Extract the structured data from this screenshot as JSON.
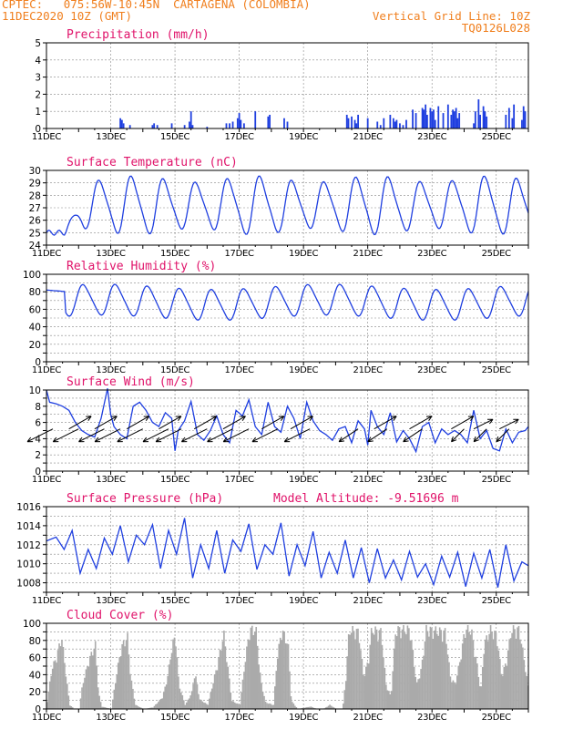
{
  "header": {
    "line1": "CPTEC:   075:56W-10:45N  CARTAGENA (COLOMBIA)",
    "line2": "11DEC2020 10Z (GMT)",
    "right1": "Vertical Grid Line: 10Z",
    "right2": "TQ0126L028"
  },
  "colors": {
    "header": "#f07f1e",
    "title": "#e0136a",
    "line": "#1f3fe0",
    "cloud": "#aaaaaa",
    "wind_arrow": "#000000"
  },
  "x_axis": {
    "labels": [
      "11DEC",
      "13DEC",
      "15DEC",
      "17DEC",
      "19DEC",
      "21DEC",
      "23DEC",
      "25DEC"
    ],
    "label_days": [
      0,
      2,
      4,
      6,
      8,
      10,
      12,
      14
    ],
    "range_days": [
      0,
      15
    ]
  },
  "chart_data": [
    {
      "type": "bar",
      "id": "precip",
      "title": "Precipitation (mm/h)",
      "ylim": [
        0,
        5
      ],
      "yticks": [
        0,
        1,
        2,
        3,
        4,
        5
      ],
      "grid": true,
      "x": [
        2.3,
        2.35,
        2.4,
        2.6,
        3.3,
        3.35,
        3.45,
        3.9,
        4.3,
        4.45,
        4.5,
        4.55,
        5.0,
        5.6,
        5.7,
        5.8,
        5.95,
        6.0,
        6.05,
        6.15,
        6.5,
        6.9,
        6.95,
        7.4,
        7.5,
        9.35,
        9.4,
        9.5,
        9.6,
        9.65,
        9.7,
        10.0,
        10.3,
        10.4,
        10.5,
        10.7,
        10.8,
        10.85,
        10.9,
        11.0,
        11.1,
        11.2,
        11.4,
        11.5,
        11.7,
        11.75,
        11.8,
        11.85,
        11.95,
        12.0,
        12.05,
        12.1,
        12.2,
        12.35,
        12.5,
        12.6,
        12.65,
        12.7,
        12.75,
        12.8,
        12.85,
        13.3,
        13.35,
        13.45,
        13.5,
        13.6,
        13.65,
        13.7,
        14.3,
        14.4,
        14.5,
        14.55,
        14.8,
        14.85,
        14.9
      ],
      "values": [
        0.6,
        0.5,
        0.3,
        0.2,
        0.2,
        0.3,
        0.2,
        0.3,
        0.2,
        0.4,
        1.0,
        0.2,
        0.1,
        0.3,
        0.3,
        0.4,
        0.6,
        0.9,
        0.5,
        0.3,
        1.0,
        0.7,
        0.8,
        0.6,
        0.4,
        0.8,
        0.6,
        0.7,
        0.5,
        0.3,
        0.8,
        0.6,
        0.4,
        0.2,
        0.6,
        0.8,
        0.6,
        0.4,
        0.5,
        0.3,
        0.2,
        0.5,
        1.1,
        0.9,
        1.2,
        1.1,
        1.4,
        0.8,
        1.2,
        1.0,
        1.1,
        0.5,
        1.3,
        0.9,
        1.4,
        0.8,
        1.1,
        1.0,
        1.2,
        0.6,
        0.9,
        0.3,
        1.0,
        1.7,
        0.8,
        1.3,
        1.0,
        0.7,
        0.8,
        1.2,
        0.6,
        1.4,
        0.5,
        1.3,
        1.0
      ]
    },
    {
      "type": "line",
      "id": "temp",
      "title": "Surface Temperature (nC)",
      "ylim": [
        24,
        30
      ],
      "yticks": [
        24,
        25,
        26,
        27,
        28,
        29,
        30
      ],
      "grid": true,
      "mean": 27.2,
      "amp": 2.0,
      "period_days": 1.0,
      "phase_day": 0.42,
      "x": [
        0,
        0.1,
        0.2,
        0.35,
        0.5,
        0.6
      ],
      "values": [
        24.8,
        25.2,
        25.0,
        24.9,
        24.8,
        25.3
      ]
    },
    {
      "type": "line",
      "id": "rh",
      "title": "Relative Humidity (%)",
      "ylim": [
        0,
        100
      ],
      "yticks": [
        0,
        10,
        20,
        30,
        40,
        50,
        60,
        70,
        80,
        90,
        100
      ],
      "ytick_labels": [
        0,
        20,
        40,
        60,
        80,
        100
      ],
      "grid": true,
      "mean": 68,
      "amp": 17,
      "period_days": 1.0,
      "phase_day": 0.92,
      "x": [
        0,
        0.3,
        0.6
      ],
      "values": [
        83,
        82,
        80
      ]
    },
    {
      "type": "line",
      "id": "wind",
      "title": "Surface Wind (m/s)",
      "ylim": [
        0,
        10
      ],
      "yticks": [
        0,
        1,
        2,
        3,
        4,
        5,
        6,
        7,
        8,
        9,
        10
      ],
      "ytick_labels": [
        0,
        2,
        4,
        6,
        8,
        10
      ],
      "grid": true,
      "x": [
        0,
        0.1,
        0.3,
        0.5,
        0.7,
        0.9,
        1.1,
        1.3,
        1.5,
        1.7,
        1.9,
        2.0,
        2.1,
        2.3,
        2.5,
        2.7,
        2.9,
        3.1,
        3.3,
        3.5,
        3.7,
        3.9,
        4.0,
        4.1,
        4.3,
        4.5,
        4.7,
        4.9,
        5.1,
        5.3,
        5.5,
        5.7,
        5.9,
        6.1,
        6.3,
        6.5,
        6.7,
        6.9,
        7.1,
        7.3,
        7.5,
        7.7,
        7.9,
        8.1,
        8.3,
        8.5,
        8.7,
        8.9,
        9.1,
        9.3,
        9.5,
        9.7,
        9.9,
        10.0,
        10.1,
        10.3,
        10.5,
        10.7,
        10.9,
        11.1,
        11.3,
        11.5,
        11.7,
        11.9,
        12.1,
        12.3,
        12.5,
        12.7,
        12.9,
        13.1,
        13.3,
        13.5,
        13.7,
        13.9,
        14.1,
        14.3,
        14.5,
        14.7,
        14.9,
        15.0
      ],
      "values": [
        10,
        8.5,
        8.3,
        8,
        7.5,
        6,
        5,
        4.5,
        4.2,
        6.5,
        10.2,
        7,
        5.5,
        4.5,
        4,
        8,
        8.5,
        7.5,
        6,
        5.5,
        7.2,
        6.5,
        2.5,
        5,
        6.2,
        8.6,
        4.5,
        3.8,
        5,
        6.8,
        4.5,
        3.5,
        7.5,
        6.8,
        8.8,
        5.5,
        4.5,
        8.5,
        5.5,
        4.8,
        8,
        6.5,
        4,
        8.5,
        6.2,
        5,
        4.5,
        3.8,
        5.2,
        5.5,
        3.5,
        6.2,
        5.2,
        3.2,
        7.5,
        5.5,
        4.5,
        7.2,
        3.6,
        5,
        4,
        2.4,
        5.5,
        6,
        3.5,
        5.2,
        4.5,
        5,
        4.5,
        3.5,
        7.5,
        4,
        5,
        2.8,
        2.5,
        5.2,
        3.5,
        4.8,
        5,
        5.5
      ],
      "arrows": [
        {
          "x": 0.2,
          "u": -4,
          "v": -2
        },
        {
          "x": 0.7,
          "u": 3.5,
          "v": 2
        },
        {
          "x": 1.0,
          "u": -4,
          "v": -2
        },
        {
          "x": 1.5,
          "u": 3.5,
          "v": 2
        },
        {
          "x": 1.8,
          "u": -4,
          "v": -2
        },
        {
          "x": 2.3,
          "u": -4,
          "v": -2
        },
        {
          "x": 2.5,
          "u": 3.5,
          "v": 2
        },
        {
          "x": 3.0,
          "u": -4,
          "v": -2
        },
        {
          "x": 3.5,
          "u": 3.5,
          "v": 2
        },
        {
          "x": 3.8,
          "u": -4,
          "v": -2
        },
        {
          "x": 4.2,
          "u": -4,
          "v": -2
        },
        {
          "x": 4.6,
          "u": 3.5,
          "v": 2
        },
        {
          "x": 5.0,
          "u": -4,
          "v": -2
        },
        {
          "x": 5.5,
          "u": 3.5,
          "v": 2
        },
        {
          "x": 5.8,
          "u": -4,
          "v": -2
        },
        {
          "x": 6.3,
          "u": -4,
          "v": -2
        },
        {
          "x": 6.7,
          "u": 3.5,
          "v": 2
        },
        {
          "x": 7.2,
          "u": -4,
          "v": -2
        },
        {
          "x": 7.6,
          "u": 3.5,
          "v": 2
        },
        {
          "x": 8.2,
          "u": -4,
          "v": -2
        },
        {
          "x": 9.7,
          "u": -3,
          "v": -2
        },
        {
          "x": 10.2,
          "u": 3.5,
          "v": 2
        },
        {
          "x": 10.6,
          "u": -3,
          "v": -2
        },
        {
          "x": 11.3,
          "u": 3.5,
          "v": 2
        },
        {
          "x": 11.7,
          "u": -3,
          "v": -2
        },
        {
          "x": 12.6,
          "u": 3.5,
          "v": 2
        },
        {
          "x": 13.0,
          "u": -2,
          "v": -2
        },
        {
          "x": 13.3,
          "u": 3,
          "v": 1.5
        },
        {
          "x": 13.7,
          "u": -2,
          "v": -2
        },
        {
          "x": 14.1,
          "u": 3,
          "v": 1.5
        },
        {
          "x": 14.4,
          "u": -2,
          "v": -2
        }
      ]
    },
    {
      "type": "line",
      "id": "pres",
      "title": "Surface Pressure (hPa)",
      "annotation": "Model Altitude: -9.51696 m",
      "ylim": [
        1007,
        1016
      ],
      "yticks": [
        1007,
        1008,
        1009,
        1010,
        1011,
        1012,
        1013,
        1014,
        1015,
        1016
      ],
      "ytick_labels": [
        1008,
        1010,
        1012,
        1014,
        1016
      ],
      "grid": true,
      "x": [
        0,
        0.3,
        0.55,
        0.8,
        1.05,
        1.3,
        1.55,
        1.8,
        2.05,
        2.3,
        2.55,
        2.8,
        3.05,
        3.3,
        3.55,
        3.8,
        4.05,
        4.3,
        4.55,
        4.8,
        5.05,
        5.3,
        5.55,
        5.8,
        6.05,
        6.3,
        6.55,
        6.8,
        7.05,
        7.3,
        7.55,
        7.8,
        8.05,
        8.3,
        8.55,
        8.8,
        9.05,
        9.3,
        9.55,
        9.8,
        10.05,
        10.3,
        10.55,
        10.8,
        11.05,
        11.3,
        11.55,
        11.8,
        12.05,
        12.3,
        12.55,
        12.8,
        13.05,
        13.3,
        13.55,
        13.8,
        14.05,
        14.3,
        14.55,
        14.8,
        15.0
      ],
      "values": [
        1012.4,
        1012.8,
        1011.5,
        1013.5,
        1009,
        1011.5,
        1009.5,
        1012.7,
        1011,
        1014,
        1010.2,
        1013,
        1012,
        1014.1,
        1009.5,
        1013.5,
        1011,
        1014.8,
        1008.5,
        1012,
        1009.5,
        1013.5,
        1009,
        1012.5,
        1011.3,
        1014.2,
        1009.4,
        1012,
        1011,
        1014.3,
        1008.7,
        1012,
        1009.8,
        1013.4,
        1008.5,
        1011.2,
        1009,
        1012.5,
        1008.5,
        1011.7,
        1008,
        1011.6,
        1008.5,
        1010.4,
        1008.3,
        1011.3,
        1008.6,
        1010,
        1007.8,
        1010.8,
        1008.6,
        1011.2,
        1007.6,
        1011.1,
        1008.5,
        1011.5,
        1007.5,
        1012,
        1008.2,
        1010.2,
        1009.8
      ]
    },
    {
      "type": "bar",
      "id": "cloud",
      "title": "Cloud Cover (%)",
      "ylim": [
        0,
        100
      ],
      "yticks": [
        0,
        10,
        20,
        30,
        40,
        50,
        60,
        70,
        80,
        90,
        100
      ],
      "ytick_labels": [
        0,
        20,
        40,
        60,
        80,
        100
      ],
      "grid": true,
      "profile": [
        [
          0.0,
          10
        ],
        [
          0.15,
          50
        ],
        [
          0.3,
          65
        ],
        [
          0.45,
          90
        ],
        [
          0.55,
          55
        ],
        [
          0.7,
          5
        ],
        [
          0.85,
          0
        ],
        [
          1.0,
          0
        ],
        [
          1.1,
          30
        ],
        [
          1.3,
          60
        ],
        [
          1.5,
          80
        ],
        [
          1.6,
          20
        ],
        [
          1.7,
          3
        ],
        [
          2.0,
          0
        ],
        [
          2.15,
          40
        ],
        [
          2.3,
          75
        ],
        [
          2.5,
          90
        ],
        [
          2.6,
          40
        ],
        [
          2.75,
          5
        ],
        [
          3.0,
          0
        ],
        [
          3.3,
          2
        ],
        [
          3.6,
          15
        ],
        [
          3.75,
          40
        ],
        [
          3.9,
          80
        ],
        [
          4.0,
          90
        ],
        [
          4.1,
          30
        ],
        [
          4.3,
          5
        ],
        [
          4.5,
          20
        ],
        [
          4.6,
          45
        ],
        [
          4.75,
          12
        ],
        [
          5.0,
          5
        ],
        [
          5.15,
          30
        ],
        [
          5.3,
          55
        ],
        [
          5.5,
          93
        ],
        [
          5.6,
          60
        ],
        [
          5.75,
          10
        ],
        [
          6.0,
          5
        ],
        [
          6.15,
          55
        ],
        [
          6.3,
          98
        ],
        [
          6.5,
          98
        ],
        [
          6.65,
          35
        ],
        [
          6.8,
          8
        ],
        [
          7.05,
          5
        ],
        [
          7.15,
          60
        ],
        [
          7.3,
          98
        ],
        [
          7.5,
          80
        ],
        [
          7.6,
          10
        ],
        [
          7.8,
          0
        ],
        [
          8.2,
          3
        ],
        [
          8.4,
          0
        ],
        [
          8.6,
          0
        ],
        [
          8.8,
          5
        ],
        [
          9.0,
          0
        ],
        [
          9.2,
          0
        ],
        [
          9.3,
          40
        ],
        [
          9.4,
          98
        ],
        [
          9.7,
          95
        ],
        [
          9.85,
          40
        ],
        [
          10.0,
          60
        ],
        [
          10.1,
          98
        ],
        [
          10.4,
          95
        ],
        [
          10.55,
          30
        ],
        [
          10.7,
          15
        ],
        [
          10.85,
          98
        ],
        [
          11.3,
          98
        ],
        [
          11.5,
          30
        ],
        [
          11.65,
          50
        ],
        [
          11.8,
          98
        ],
        [
          12.4,
          95
        ],
        [
          12.55,
          40
        ],
        [
          12.7,
          30
        ],
        [
          12.9,
          70
        ],
        [
          13.0,
          98
        ],
        [
          13.2,
          98
        ],
        [
          13.4,
          50
        ],
        [
          13.5,
          20
        ],
        [
          13.6,
          80
        ],
        [
          13.8,
          98
        ],
        [
          14.0,
          90
        ],
        [
          14.15,
          40
        ],
        [
          14.3,
          60
        ],
        [
          14.45,
          98
        ],
        [
          14.7,
          98
        ],
        [
          14.85,
          60
        ],
        [
          15.0,
          20
        ]
      ]
    }
  ]
}
